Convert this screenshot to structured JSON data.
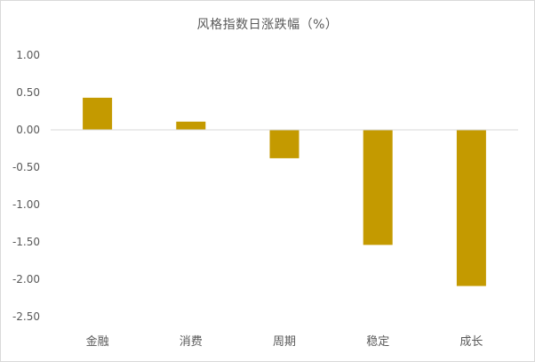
{
  "chart_data": {
    "type": "bar",
    "title": "风格指数日涨跌幅（%）",
    "categories": [
      "金融",
      "消费",
      "周期",
      "稳定",
      "成长"
    ],
    "values": [
      0.43,
      0.11,
      -0.38,
      -1.54,
      -2.09
    ],
    "ylim": [
      -2.5,
      1.0
    ],
    "yticks": [
      "1.00",
      "0.50",
      "0.00",
      "-0.50",
      "-1.00",
      "-1.50",
      "-2.00",
      "-2.50"
    ],
    "xlabel": "",
    "ylabel": "",
    "grid": false,
    "legend": "none",
    "bar_color": "#C49A00",
    "zero_line_color": "#d9d9d9"
  }
}
